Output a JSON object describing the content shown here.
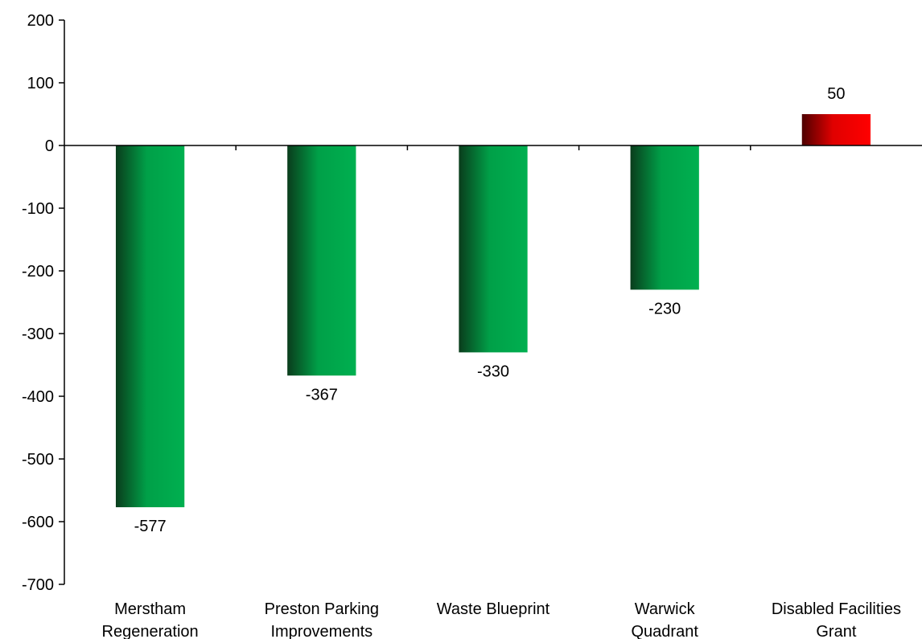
{
  "chart_data": {
    "type": "bar",
    "categories": [
      [
        "Merstham",
        "Regeneration"
      ],
      [
        "Preston Parking",
        "Improvements"
      ],
      [
        "Waste Blueprint"
      ],
      [
        "Warwick",
        "Quadrant"
      ],
      [
        "Disabled Facilities",
        "Grant"
      ]
    ],
    "values": [
      -577,
      -367,
      -330,
      -230,
      50
    ],
    "data_labels": [
      "-577",
      "-367",
      "-330",
      "-230",
      "50"
    ],
    "ylim": [
      -700,
      200
    ],
    "yticks": [
      200,
      100,
      0,
      -100,
      -200,
      -300,
      -400,
      -500,
      -600,
      -700
    ],
    "grid": false,
    "legend": "none",
    "colors": {
      "negative_light": "#00b050",
      "negative_dark": "#0a3d1c",
      "positive_light": "#ff0000",
      "positive_dark": "#4d0000"
    }
  }
}
